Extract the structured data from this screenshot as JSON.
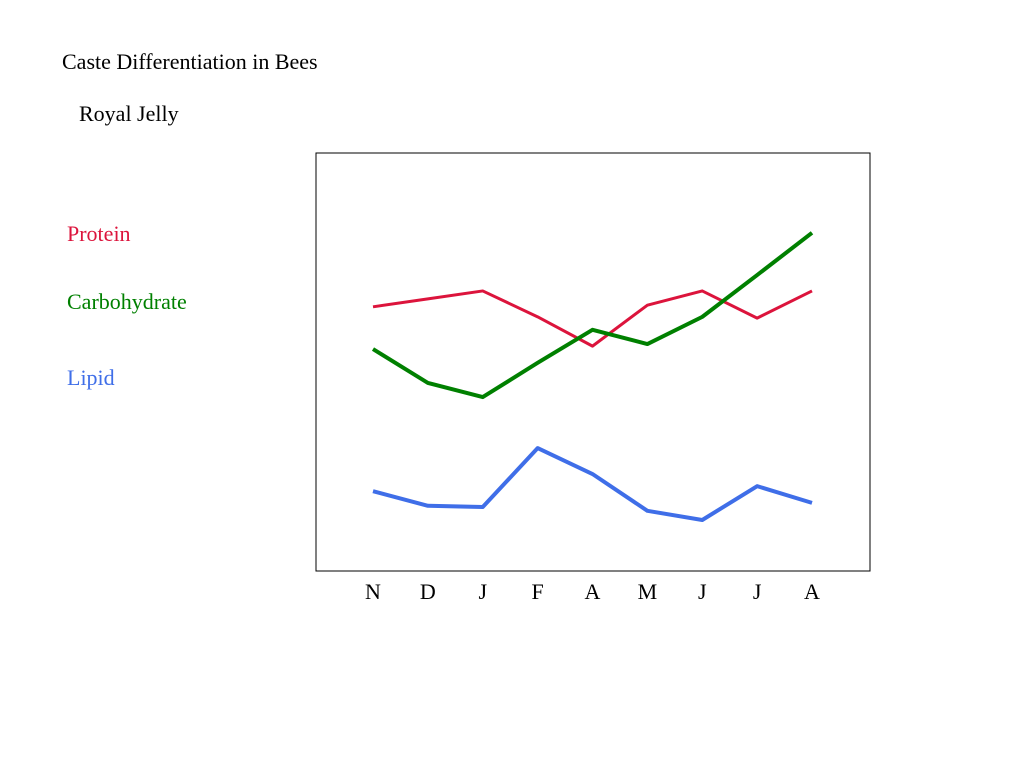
{
  "chart_data": {
    "type": "line",
    "title": "Caste Differentiation in Bees",
    "subtitle": "Royal Jelly",
    "categories": [
      "N",
      "D",
      "J",
      "F",
      "A",
      "M",
      "J",
      "J",
      "A"
    ],
    "series": [
      {
        "name": "Protein",
        "color": "#dc143c",
        "values": [
          63.2,
          65.1,
          67.0,
          60.8,
          53.8,
          63.6,
          67.0,
          60.5,
          67.0
        ]
      },
      {
        "name": "Carbohydrate",
        "color": "#008000",
        "values": [
          53.1,
          45.0,
          41.6,
          49.8,
          57.7,
          54.3,
          60.8,
          70.8,
          80.9
        ]
      },
      {
        "name": "Lipid",
        "color": "#3f6ee8",
        "values": [
          19.1,
          15.6,
          15.3,
          29.4,
          23.2,
          14.4,
          12.2,
          20.3,
          16.3
        ]
      }
    ],
    "ylim": [
      0,
      100
    ]
  }
}
